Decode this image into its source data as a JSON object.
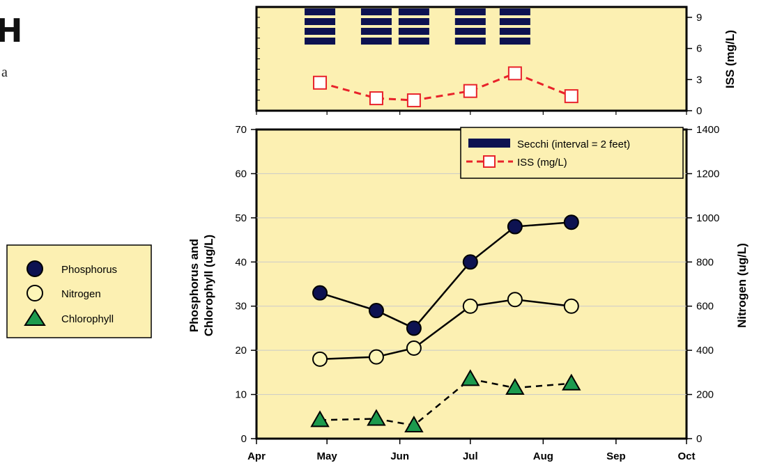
{
  "page_fragments": {
    "title_fragment": "H",
    "subtitle_fragment": "a"
  },
  "colors": {
    "panel_bg": "#fcf0b2",
    "phosphorus": "#0d1251",
    "nitrogen_fill": "#fdf6b8",
    "chlorophyll": "#1c9a4e",
    "iss": "#e8222a",
    "secchi": "#0d1251",
    "grid": "#c9c9c9"
  },
  "legend_left": {
    "items": [
      {
        "label": "Phosphorus",
        "marker": "filled-circle-icon"
      },
      {
        "label": "Nitrogen",
        "marker": "open-circle-icon"
      },
      {
        "label": "Chlorophyll",
        "marker": "triangle-icon"
      }
    ]
  },
  "legend_right": {
    "items": [
      {
        "label": "Secchi (interval = 2 feet)",
        "marker": "bar-icon"
      },
      {
        "label": "ISS (mg/L)",
        "marker": "dashed-square-icon"
      }
    ]
  },
  "chart_data": [
    {
      "type": "line",
      "panel": "iss-secchi",
      "ylabel": "ISS (mg/L)",
      "ylim": [
        0,
        10
      ],
      "y_ticks": [
        "0",
        "3",
        "6",
        "9"
      ],
      "xlim": [
        "Apr",
        "Oct"
      ],
      "series": [
        {
          "name": "ISS (mg/L)",
          "style": "dashed-open-square",
          "x": [
            "2024-04-28",
            "2024-05-22",
            "2024-06-07",
            "2024-07-01",
            "2024-07-20",
            "2024-08-13"
          ],
          "values": [
            2.7,
            1.2,
            1.0,
            1.9,
            3.6,
            1.4
          ]
        },
        {
          "name": "Secchi (interval = 2 feet)",
          "type": "bar",
          "x": [
            "2024-04-28",
            "2024-05-22",
            "2024-06-07",
            "2024-07-01",
            "2024-07-20"
          ],
          "intervals": [
            4,
            4,
            4,
            4,
            4
          ]
        }
      ]
    },
    {
      "type": "line",
      "panel": "nutrients",
      "x_ticks": [
        "Apr",
        "May",
        "Jun",
        "Jul",
        "Aug",
        "Sep",
        "Oct"
      ],
      "ylabel": "Phosphorus and\nChlorophyll (ug/L)",
      "ylim": [
        0,
        70
      ],
      "y_ticks": [
        "0",
        "10",
        "20",
        "30",
        "40",
        "50",
        "60",
        "70"
      ],
      "y2label": "Nitrogen (ug/L)",
      "y2lim": [
        0,
        1400
      ],
      "y2_ticks": [
        "0",
        "200",
        "400",
        "600",
        "800",
        "1000",
        "1200",
        "1400"
      ],
      "grid": true,
      "series": [
        {
          "name": "Phosphorus",
          "axis": "left",
          "style": "solid-filled-circle",
          "x": [
            "2024-04-28",
            "2024-05-22",
            "2024-06-07",
            "2024-07-01",
            "2024-07-20",
            "2024-08-13"
          ],
          "values": [
            33,
            29,
            25,
            40,
            48,
            49
          ]
        },
        {
          "name": "Nitrogen",
          "axis": "right",
          "style": "solid-open-circle",
          "x": [
            "2024-04-28",
            "2024-05-22",
            "2024-06-07",
            "2024-07-01",
            "2024-07-20",
            "2024-08-13"
          ],
          "values": [
            360,
            370,
            410,
            600,
            630,
            600
          ]
        },
        {
          "name": "Chlorophyll",
          "axis": "left",
          "style": "dashed-triangle",
          "x": [
            "2024-04-28",
            "2024-05-22",
            "2024-06-07",
            "2024-07-01",
            "2024-07-20",
            "2024-08-13"
          ],
          "values": [
            4.2,
            4.5,
            3.0,
            13.5,
            11.5,
            12.5
          ]
        }
      ]
    }
  ]
}
